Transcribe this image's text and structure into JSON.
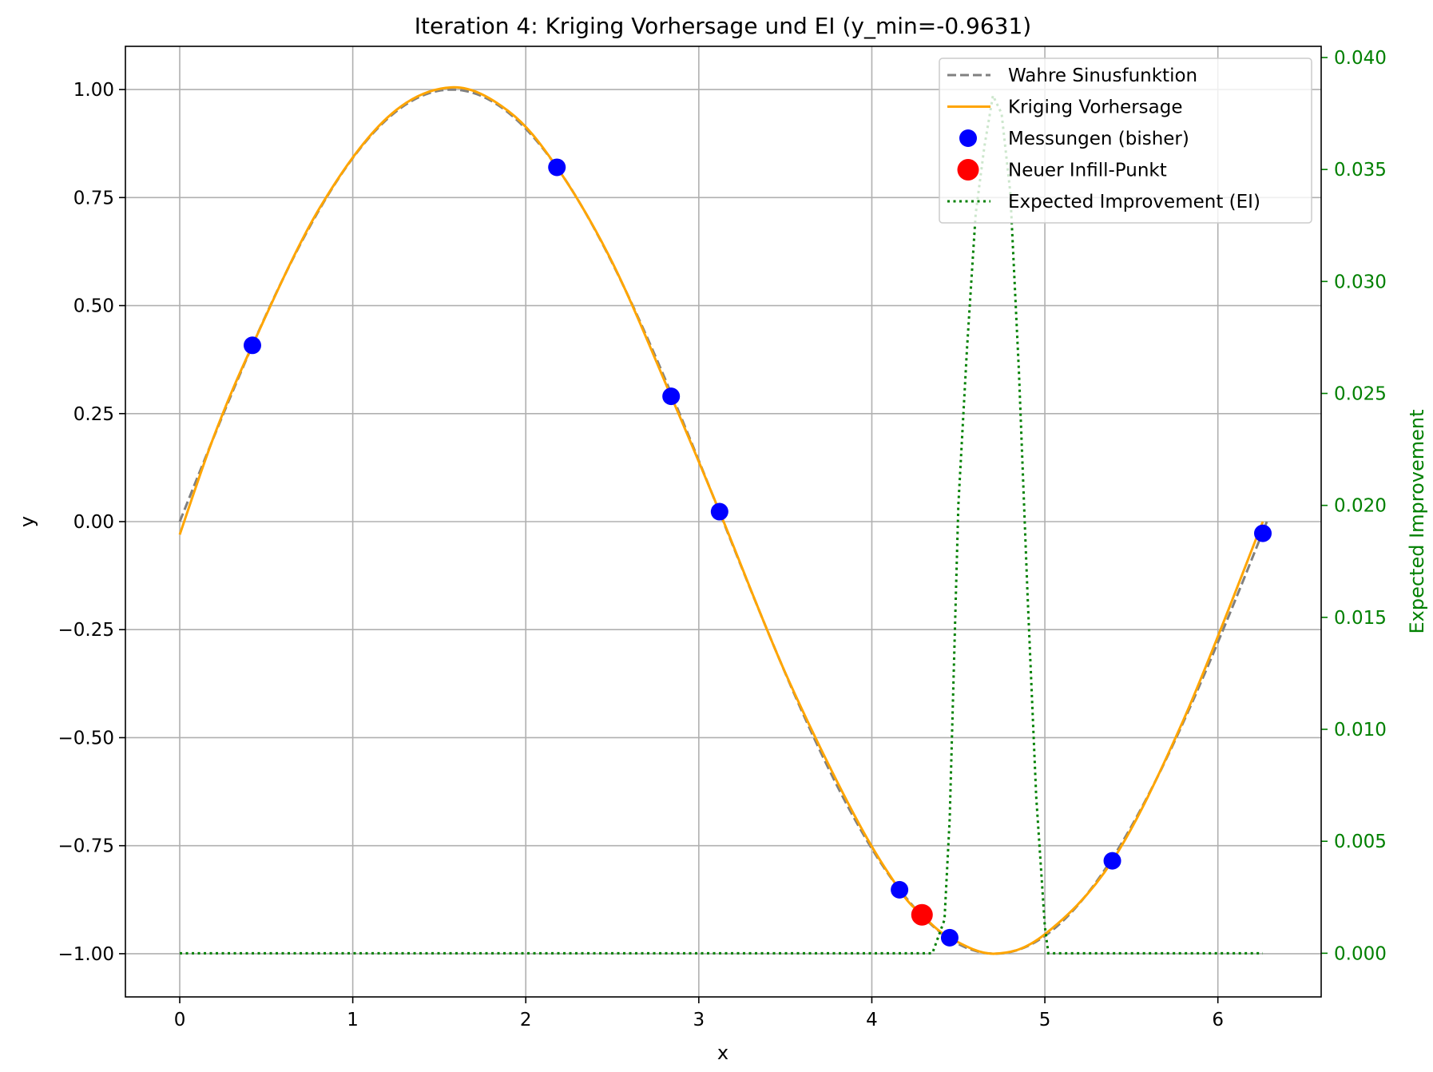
{
  "chart_data": {
    "type": "line",
    "title": "Iteration 4: Kriging Vorhersage und EI (y_min=-0.9631)",
    "xlabel": "x",
    "ylabel": "y",
    "y2label": "Expected Improvement",
    "xlim": [
      -0.314,
      6.597
    ],
    "ylim": [
      -1.1,
      1.1
    ],
    "y2lim": [
      -0.00195,
      0.0405
    ],
    "x_ticks": [
      0,
      1,
      2,
      3,
      4,
      5,
      6
    ],
    "y_ticks": [
      1.0,
      0.75,
      0.5,
      0.25,
      0.0,
      -0.25,
      -0.5,
      -0.75,
      -1.0
    ],
    "y_tick_labels": [
      "1.00",
      "0.75",
      "0.50",
      "0.25",
      "0.00",
      "−0.25",
      "−0.50",
      "−0.75",
      "−1.00"
    ],
    "y2_ticks": [
      0.0,
      0.005,
      0.01,
      0.015,
      0.02,
      0.025,
      0.03,
      0.035,
      0.04
    ],
    "y2_tick_labels": [
      "0.000",
      "0.005",
      "0.010",
      "0.015",
      "0.020",
      "0.025",
      "0.030",
      "0.035",
      "0.040"
    ],
    "grid": true,
    "legend_position": "top-right",
    "colors": {
      "true_function": "#808080",
      "kriging": "#FFA500",
      "measurements": "#0000FF",
      "infill": "#FF0000",
      "ei": "#008000"
    },
    "series": [
      {
        "name": "Wahre Sinusfunktion",
        "style": "dashed",
        "function": "sin(x)",
        "x_range": [
          0,
          6.283
        ]
      },
      {
        "name": "Kriging Vorhersage",
        "style": "solid",
        "x": [
          0.0,
          0.2,
          0.42,
          0.8,
          1.2,
          1.57,
          1.9,
          2.18,
          2.5,
          2.84,
          3.12,
          3.5,
          3.9,
          4.16,
          4.29,
          4.45,
          4.71,
          5.0,
          5.39,
          5.8,
          6.26
        ],
        "y": [
          -0.03,
          0.2,
          0.408,
          0.72,
          0.935,
          1.005,
          0.95,
          0.82,
          0.6,
          0.29,
          0.023,
          -0.35,
          -0.68,
          -0.852,
          -0.91,
          -0.963,
          -1.0,
          -0.955,
          -0.785,
          -0.46,
          0.0
        ]
      },
      {
        "name": "Messungen (bisher)",
        "style": "markers",
        "x": [
          0.42,
          2.18,
          2.84,
          3.12,
          4.16,
          4.45,
          5.39,
          6.26
        ],
        "y": [
          0.408,
          0.82,
          0.29,
          0.023,
          -0.852,
          -0.963,
          -0.785,
          -0.027
        ]
      },
      {
        "name": "Neuer Infill-Punkt",
        "style": "markers",
        "x": [
          4.29
        ],
        "y": [
          -0.91
        ]
      },
      {
        "name": "Expected Improvement (EI)",
        "style": "dotted",
        "axis": "right",
        "x": [
          0.0,
          4.35,
          4.42,
          4.45,
          4.5,
          4.55,
          4.6,
          4.65,
          4.7,
          4.75,
          4.8,
          4.85,
          4.9,
          4.95,
          5.0,
          5.02,
          6.26
        ],
        "y": [
          0.0,
          0.0,
          0.0015,
          0.006,
          0.02,
          0.027,
          0.033,
          0.036,
          0.0383,
          0.0375,
          0.034,
          0.026,
          0.016,
          0.007,
          0.0012,
          0.0,
          0.0
        ]
      }
    ]
  }
}
